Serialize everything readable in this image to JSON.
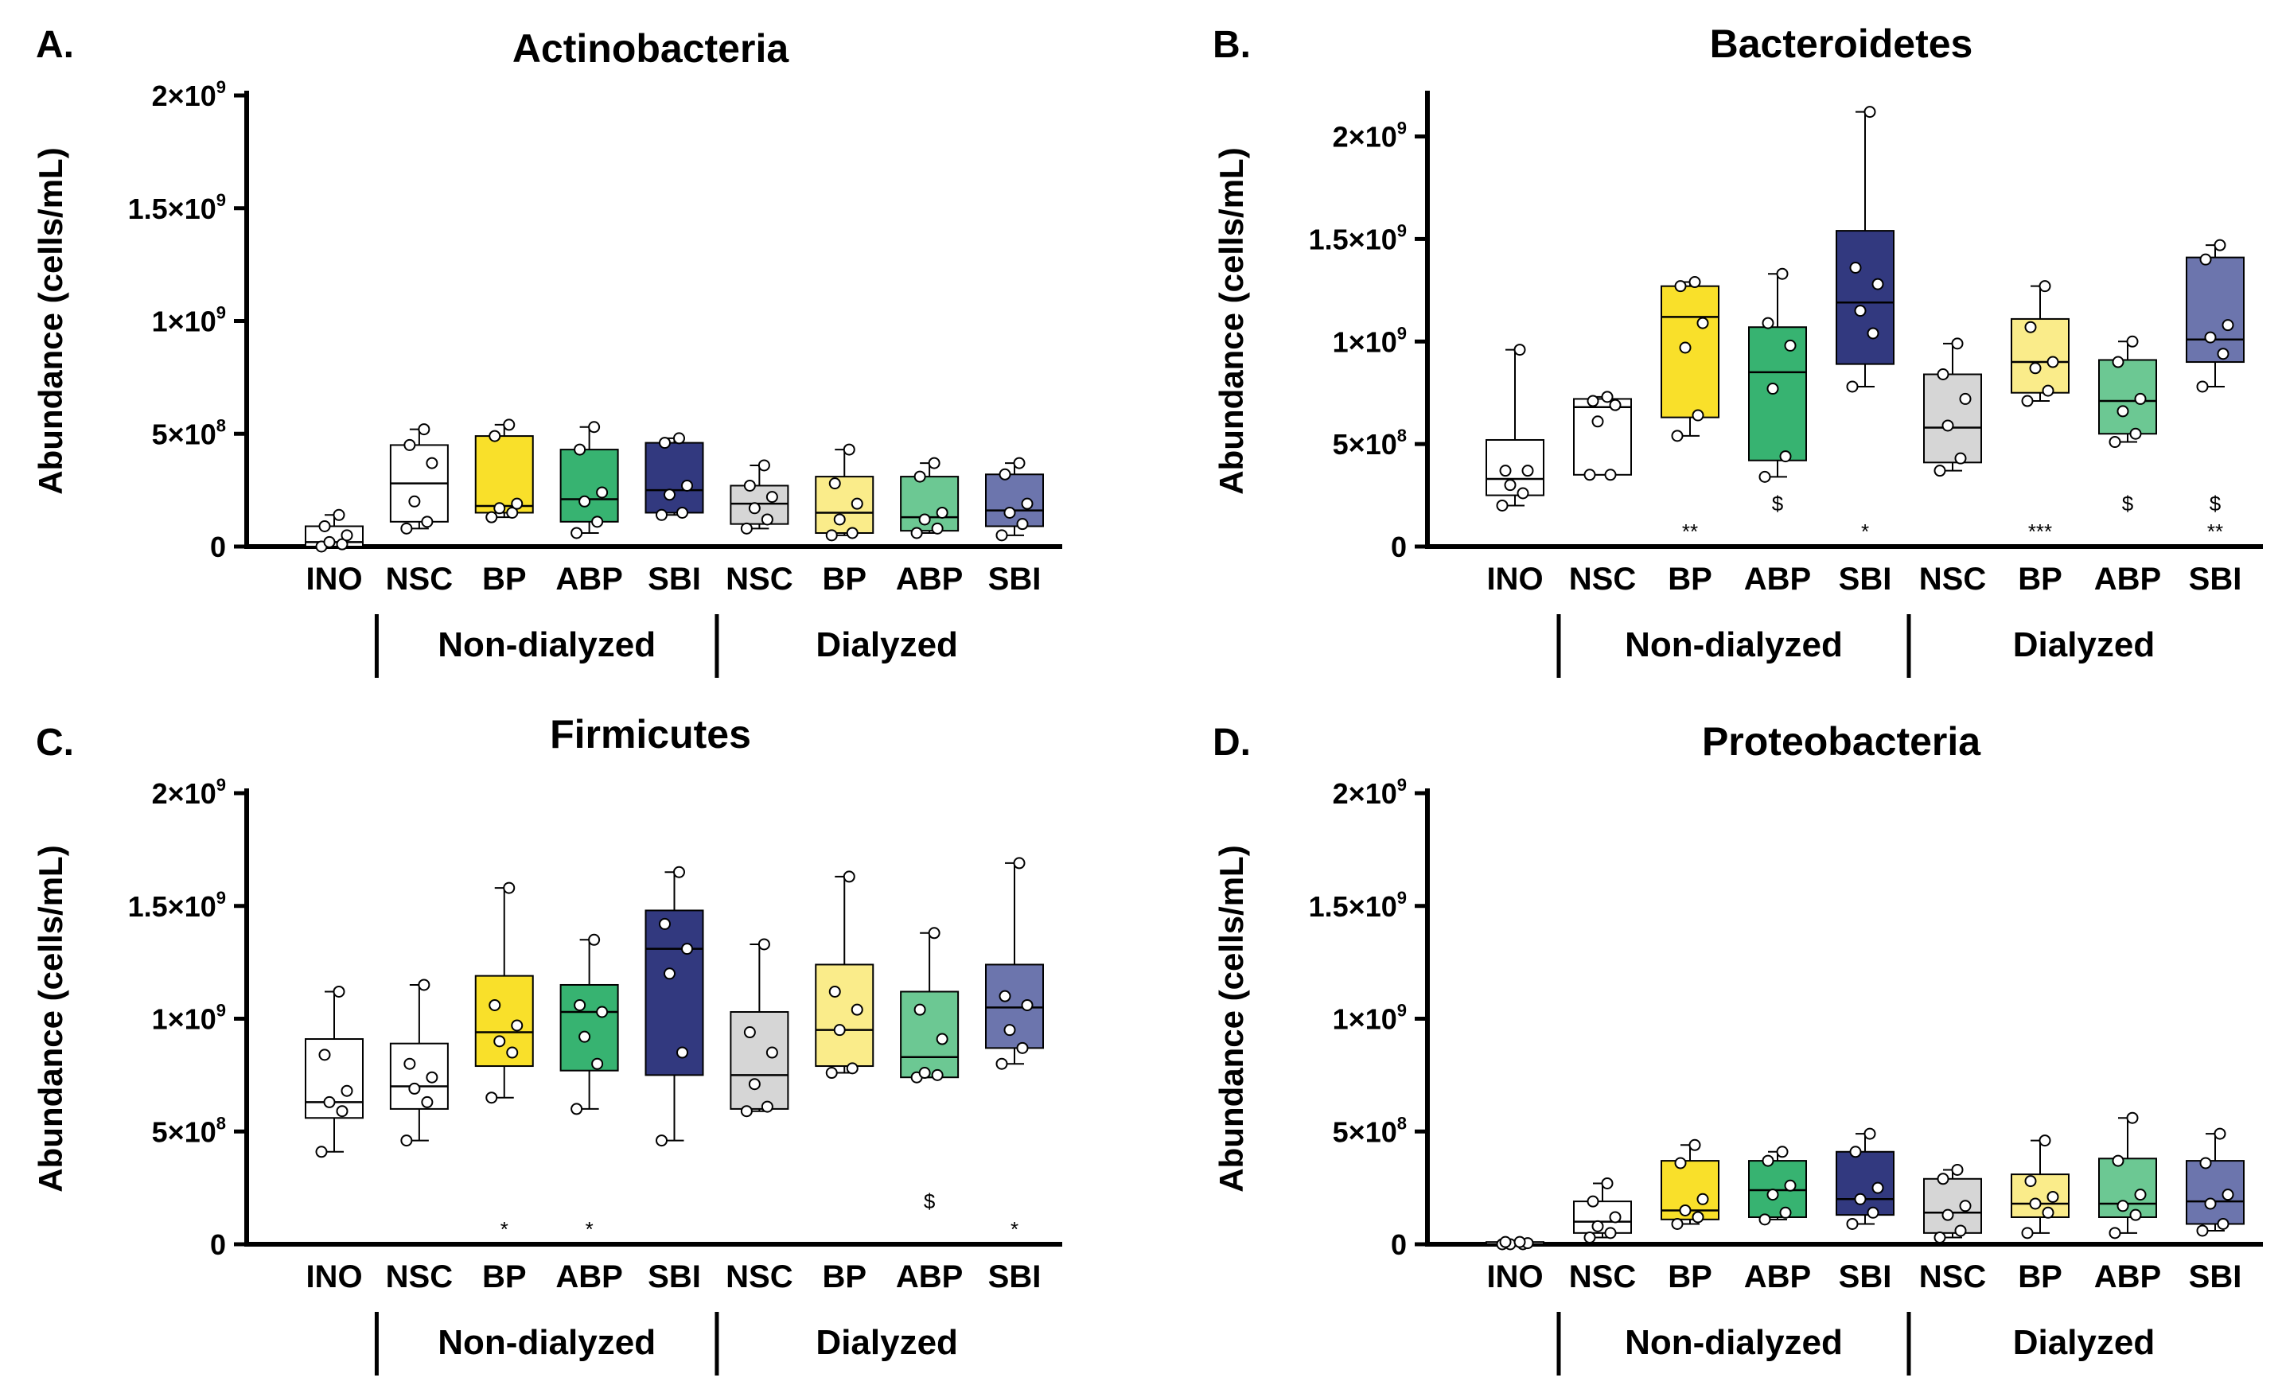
{
  "colors": {
    "INO": "#ffffff",
    "NSC_nd": "#ffffff",
    "BP_nd": "#f9e02a",
    "ABP_nd": "#37b371",
    "SBI_nd": "#32397f",
    "NSC_d": "#d6d6d6",
    "BP_d": "#faec8a",
    "ABP_d": "#6cc893",
    "SBI_d": "#6c75ad"
  },
  "chart_data": [
    {
      "type": "boxplot",
      "letter": "A.",
      "title": "Actinobacteria",
      "ylabel": "Abundance (cells/mL)",
      "ylim": [
        0,
        2000000000
      ],
      "yticks": [
        {
          "value": 0,
          "mant": "0",
          "exp": ""
        },
        {
          "value": 500000000,
          "mant": "5×10",
          "exp": "8"
        },
        {
          "value": 1000000000,
          "mant": "1×10",
          "exp": "9"
        },
        {
          "value": 1500000000,
          "mant": "1.5×10",
          "exp": "9"
        },
        {
          "value": 2000000000,
          "mant": "2×10",
          "exp": "9"
        }
      ],
      "categories": [
        "INO",
        "NSC",
        "BP",
        "ABP",
        "SBI",
        "NSC",
        "BP",
        "ABP",
        "SBI"
      ],
      "color_keys": [
        "INO",
        "NSC_nd",
        "BP_nd",
        "ABP_nd",
        "SBI_nd",
        "NSC_d",
        "BP_d",
        "ABP_d",
        "SBI_d"
      ],
      "groups": [
        {
          "label": "Non-dialyzed",
          "start": 1,
          "end": 4
        },
        {
          "label": "Dialyzed",
          "start": 5,
          "end": 8
        }
      ],
      "boxes": [
        {
          "min": 0.0,
          "q1": 0.0,
          "median": 0.02,
          "q3": 0.09,
          "max": 0.14,
          "points": [
            0.0,
            0.01,
            0.02,
            0.05,
            0.09,
            0.14
          ]
        },
        {
          "min": 0.08,
          "q1": 0.11,
          "median": 0.28,
          "q3": 0.45,
          "max": 0.52,
          "points": [
            0.08,
            0.11,
            0.2,
            0.37,
            0.45,
            0.52
          ]
        },
        {
          "min": 0.13,
          "q1": 0.15,
          "median": 0.18,
          "q3": 0.49,
          "max": 0.54,
          "points": [
            0.13,
            0.15,
            0.17,
            0.19,
            0.49,
            0.54
          ]
        },
        {
          "min": 0.06,
          "q1": 0.11,
          "median": 0.21,
          "q3": 0.43,
          "max": 0.53,
          "points": [
            0.06,
            0.11,
            0.2,
            0.24,
            0.43,
            0.53
          ]
        },
        {
          "min": 0.14,
          "q1": 0.15,
          "median": 0.25,
          "q3": 0.46,
          "max": 0.48,
          "points": [
            0.14,
            0.15,
            0.23,
            0.27,
            0.46,
            0.48
          ]
        },
        {
          "min": 0.08,
          "q1": 0.1,
          "median": 0.19,
          "q3": 0.27,
          "max": 0.36,
          "points": [
            0.08,
            0.12,
            0.17,
            0.22,
            0.27,
            0.36
          ]
        },
        {
          "min": 0.05,
          "q1": 0.06,
          "median": 0.15,
          "q3": 0.31,
          "max": 0.43,
          "points": [
            0.05,
            0.06,
            0.12,
            0.19,
            0.28,
            0.43
          ]
        },
        {
          "min": 0.06,
          "q1": 0.07,
          "median": 0.13,
          "q3": 0.31,
          "max": 0.37,
          "points": [
            0.06,
            0.08,
            0.12,
            0.15,
            0.31,
            0.37
          ]
        },
        {
          "min": 0.05,
          "q1": 0.09,
          "median": 0.16,
          "q3": 0.32,
          "max": 0.37,
          "points": [
            0.05,
            0.1,
            0.15,
            0.19,
            0.32,
            0.37
          ]
        }
      ],
      "annotations": []
    },
    {
      "type": "boxplot",
      "letter": "B.",
      "title": "Bacteroidetes",
      "ylabel": "Abundance (cells/mL)",
      "ylim": [
        0,
        2200000000
      ],
      "yticks": [
        {
          "value": 0,
          "mant": "0",
          "exp": ""
        },
        {
          "value": 500000000,
          "mant": "5×10",
          "exp": "8"
        },
        {
          "value": 1000000000,
          "mant": "1×10",
          "exp": "9"
        },
        {
          "value": 1500000000,
          "mant": "1.5×10",
          "exp": "9"
        },
        {
          "value": 2000000000,
          "mant": "2×10",
          "exp": "9"
        }
      ],
      "categories": [
        "INO",
        "NSC",
        "BP",
        "ABP",
        "SBI",
        "NSC",
        "BP",
        "ABP",
        "SBI"
      ],
      "color_keys": [
        "INO",
        "NSC_nd",
        "BP_nd",
        "ABP_nd",
        "SBI_nd",
        "NSC_d",
        "BP_d",
        "ABP_d",
        "SBI_d"
      ],
      "groups": [
        {
          "label": "Non-dialyzed",
          "start": 1,
          "end": 4
        },
        {
          "label": "Dialyzed",
          "start": 5,
          "end": 8
        }
      ],
      "boxes": [
        {
          "min": 0.2,
          "q1": 0.25,
          "median": 0.33,
          "q3": 0.52,
          "max": 0.96,
          "points": [
            0.2,
            0.26,
            0.3,
            0.37,
            0.37,
            0.96
          ]
        },
        {
          "min": 0.35,
          "q1": 0.35,
          "median": 0.68,
          "q3": 0.72,
          "max": 0.73,
          "points": [
            0.35,
            0.35,
            0.61,
            0.69,
            0.71,
            0.73
          ]
        },
        {
          "min": 0.54,
          "q1": 0.63,
          "median": 1.12,
          "q3": 1.27,
          "max": 1.29,
          "points": [
            0.54,
            0.64,
            0.97,
            1.09,
            1.27,
            1.29
          ]
        },
        {
          "min": 0.34,
          "q1": 0.42,
          "median": 0.85,
          "q3": 1.07,
          "max": 1.33,
          "points": [
            0.34,
            0.44,
            0.77,
            0.98,
            1.09,
            1.33
          ]
        },
        {
          "min": 0.78,
          "q1": 0.89,
          "median": 1.19,
          "q3": 1.54,
          "max": 2.12,
          "points": [
            0.78,
            1.04,
            1.15,
            1.28,
            1.36,
            2.12
          ]
        },
        {
          "min": 0.37,
          "q1": 0.41,
          "median": 0.58,
          "q3": 0.84,
          "max": 0.99,
          "points": [
            0.37,
            0.43,
            0.59,
            0.72,
            0.84,
            0.99
          ]
        },
        {
          "min": 0.71,
          "q1": 0.75,
          "median": 0.9,
          "q3": 1.11,
          "max": 1.27,
          "points": [
            0.71,
            0.76,
            0.87,
            0.9,
            1.07,
            1.27
          ]
        },
        {
          "min": 0.51,
          "q1": 0.55,
          "median": 0.71,
          "q3": 0.91,
          "max": 1.0,
          "points": [
            0.51,
            0.55,
            0.66,
            0.72,
            0.9,
            1.0
          ]
        },
        {
          "min": 0.78,
          "q1": 0.9,
          "median": 1.01,
          "q3": 1.41,
          "max": 1.47,
          "points": [
            0.78,
            0.94,
            1.02,
            1.08,
            1.4,
            1.47
          ]
        }
      ],
      "annotations": [
        {
          "index": 2,
          "dollar": "",
          "stars": "**"
        },
        {
          "index": 3,
          "dollar": "$",
          "stars": ""
        },
        {
          "index": 4,
          "dollar": "",
          "stars": "*"
        },
        {
          "index": 6,
          "dollar": "",
          "stars": "***"
        },
        {
          "index": 7,
          "dollar": "$",
          "stars": ""
        },
        {
          "index": 8,
          "dollar": "$",
          "stars": "**"
        }
      ]
    },
    {
      "type": "boxplot",
      "letter": "C.",
      "title": "Firmicutes",
      "ylabel": "Abundance (cells/mL)",
      "ylim": [
        0,
        2000000000
      ],
      "yticks": [
        {
          "value": 0,
          "mant": "0",
          "exp": ""
        },
        {
          "value": 500000000,
          "mant": "5×10",
          "exp": "8"
        },
        {
          "value": 1000000000,
          "mant": "1×10",
          "exp": "9"
        },
        {
          "value": 1500000000,
          "mant": "1.5×10",
          "exp": "9"
        },
        {
          "value": 2000000000,
          "mant": "2×10",
          "exp": "9"
        }
      ],
      "categories": [
        "INO",
        "NSC",
        "BP",
        "ABP",
        "SBI",
        "NSC",
        "BP",
        "ABP",
        "SBI"
      ],
      "color_keys": [
        "INO",
        "NSC_nd",
        "BP_nd",
        "ABP_nd",
        "SBI_nd",
        "NSC_d",
        "BP_d",
        "ABP_d",
        "SBI_d"
      ],
      "groups": [
        {
          "label": "Non-dialyzed",
          "start": 1,
          "end": 4
        },
        {
          "label": "Dialyzed",
          "start": 5,
          "end": 8
        }
      ],
      "boxes": [
        {
          "min": 0.41,
          "q1": 0.56,
          "median": 0.63,
          "q3": 0.91,
          "max": 1.12,
          "points": [
            0.41,
            0.59,
            0.63,
            0.68,
            0.84,
            1.12
          ]
        },
        {
          "min": 0.46,
          "q1": 0.6,
          "median": 0.7,
          "q3": 0.89,
          "max": 1.15,
          "points": [
            0.46,
            0.63,
            0.69,
            0.74,
            0.8,
            1.15
          ]
        },
        {
          "min": 0.65,
          "q1": 0.79,
          "median": 0.94,
          "q3": 1.19,
          "max": 1.58,
          "points": [
            0.65,
            0.85,
            0.9,
            0.97,
            1.06,
            1.58
          ]
        },
        {
          "min": 0.6,
          "q1": 0.77,
          "median": 1.03,
          "q3": 1.15,
          "max": 1.35,
          "points": [
            0.6,
            0.8,
            0.92,
            1.03,
            1.06,
            1.35
          ]
        },
        {
          "min": 0.46,
          "q1": 0.75,
          "median": 1.31,
          "q3": 1.48,
          "max": 1.65,
          "points": [
            0.46,
            0.85,
            1.2,
            1.31,
            1.42,
            1.65
          ]
        },
        {
          "min": 0.59,
          "q1": 0.6,
          "median": 0.75,
          "q3": 1.03,
          "max": 1.33,
          "points": [
            0.59,
            0.61,
            0.71,
            0.85,
            0.94,
            1.33
          ]
        },
        {
          "min": 0.76,
          "q1": 0.79,
          "median": 0.95,
          "q3": 1.24,
          "max": 1.63,
          "points": [
            0.76,
            0.78,
            0.95,
            1.04,
            1.12,
            1.63
          ]
        },
        {
          "min": 0.74,
          "q1": 0.74,
          "median": 0.83,
          "q3": 1.12,
          "max": 1.38,
          "points": [
            0.74,
            0.75,
            0.76,
            0.91,
            1.04,
            1.38
          ]
        },
        {
          "min": 0.8,
          "q1": 0.87,
          "median": 1.05,
          "q3": 1.24,
          "max": 1.69,
          "points": [
            0.8,
            0.87,
            0.95,
            1.06,
            1.1,
            1.69
          ]
        }
      ],
      "annotations": [
        {
          "index": 2,
          "dollar": "",
          "stars": "*"
        },
        {
          "index": 3,
          "dollar": "",
          "stars": "*"
        },
        {
          "index": 7,
          "dollar": "$",
          "stars": ""
        },
        {
          "index": 8,
          "dollar": "",
          "stars": "*"
        }
      ]
    },
    {
      "type": "boxplot",
      "letter": "D.",
      "title": "Proteobacteria",
      "ylabel": "Abundance (cells/mL)",
      "ylim": [
        0,
        2000000000
      ],
      "yticks": [
        {
          "value": 0,
          "mant": "0",
          "exp": ""
        },
        {
          "value": 500000000,
          "mant": "5×10",
          "exp": "8"
        },
        {
          "value": 1000000000,
          "mant": "1×10",
          "exp": "9"
        },
        {
          "value": 1500000000,
          "mant": "1.5×10",
          "exp": "9"
        },
        {
          "value": 2000000000,
          "mant": "2×10",
          "exp": "9"
        }
      ],
      "categories": [
        "INO",
        "NSC",
        "BP",
        "ABP",
        "SBI",
        "NSC",
        "BP",
        "ABP",
        "SBI"
      ],
      "color_keys": [
        "INO",
        "NSC_nd",
        "BP_nd",
        "ABP_nd",
        "SBI_nd",
        "NSC_d",
        "BP_d",
        "ABP_d",
        "SBI_d"
      ],
      "groups": [
        {
          "label": "Non-dialyzed",
          "start": 1,
          "end": 4
        },
        {
          "label": "Dialyzed",
          "start": 5,
          "end": 8
        }
      ],
      "boxes": [
        {
          "min": 0.0,
          "q1": 0.0,
          "median": 0.0,
          "q3": 0.01,
          "max": 0.01,
          "points": [
            0.0,
            0.0,
            0.0,
            0.005,
            0.01,
            0.01
          ]
        },
        {
          "min": 0.03,
          "q1": 0.05,
          "median": 0.1,
          "q3": 0.19,
          "max": 0.27,
          "points": [
            0.03,
            0.05,
            0.08,
            0.12,
            0.19,
            0.27
          ]
        },
        {
          "min": 0.09,
          "q1": 0.11,
          "median": 0.15,
          "q3": 0.37,
          "max": 0.44,
          "points": [
            0.09,
            0.12,
            0.15,
            0.2,
            0.36,
            0.44
          ]
        },
        {
          "min": 0.11,
          "q1": 0.12,
          "median": 0.24,
          "q3": 0.37,
          "max": 0.41,
          "points": [
            0.11,
            0.14,
            0.22,
            0.26,
            0.37,
            0.41
          ]
        },
        {
          "min": 0.09,
          "q1": 0.13,
          "median": 0.2,
          "q3": 0.41,
          "max": 0.49,
          "points": [
            0.09,
            0.14,
            0.2,
            0.25,
            0.41,
            0.49
          ]
        },
        {
          "min": 0.03,
          "q1": 0.05,
          "median": 0.14,
          "q3": 0.29,
          "max": 0.33,
          "points": [
            0.03,
            0.06,
            0.13,
            0.17,
            0.29,
            0.33
          ]
        },
        {
          "min": 0.05,
          "q1": 0.12,
          "median": 0.18,
          "q3": 0.31,
          "max": 0.46,
          "points": [
            0.05,
            0.14,
            0.18,
            0.21,
            0.28,
            0.46
          ]
        },
        {
          "min": 0.05,
          "q1": 0.12,
          "median": 0.18,
          "q3": 0.38,
          "max": 0.56,
          "points": [
            0.05,
            0.13,
            0.17,
            0.22,
            0.37,
            0.56
          ]
        },
        {
          "min": 0.06,
          "q1": 0.09,
          "median": 0.19,
          "q3": 0.37,
          "max": 0.49,
          "points": [
            0.06,
            0.09,
            0.18,
            0.22,
            0.36,
            0.49
          ]
        }
      ],
      "annotations": []
    }
  ]
}
